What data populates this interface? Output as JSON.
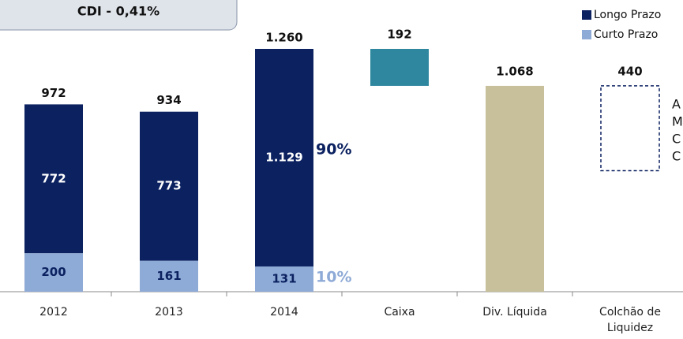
{
  "chart_data": {
    "type": "bar",
    "stacked": true,
    "header": "CDI - 0,41%",
    "categories": [
      "2012",
      "2013",
      "2014",
      "Caixa",
      "Div. Líquida",
      "Colchão de Liquidez"
    ],
    "series": [
      {
        "name": "Curto Prazo",
        "color": "#8eaad6",
        "values": [
          200,
          161,
          131,
          null,
          null,
          null
        ]
      },
      {
        "name": "Longo Prazo",
        "color": "#0b2160",
        "values": [
          772,
          773,
          1129,
          null,
          null,
          null
        ],
        "value_labels": [
          "772",
          "773",
          "1.129",
          null,
          null,
          null
        ]
      }
    ],
    "totals": {
      "values": [
        972,
        934,
        1260,
        null,
        null,
        null
      ],
      "value_labels": [
        "972",
        "934",
        "1.260",
        null,
        null,
        null
      ]
    },
    "bridge": {
      "values": [
        null,
        null,
        null,
        192,
        1068,
        440
      ],
      "value_labels": [
        null,
        null,
        null,
        "192",
        "1.068",
        "440"
      ],
      "colors": [
        null,
        null,
        null,
        "#2e879f",
        "#c8c09a",
        "none"
      ]
    },
    "annotations": [
      "90%",
      "10%"
    ],
    "side_text": [
      "A",
      "M",
      "C",
      "C"
    ],
    "legend": "top-right"
  }
}
